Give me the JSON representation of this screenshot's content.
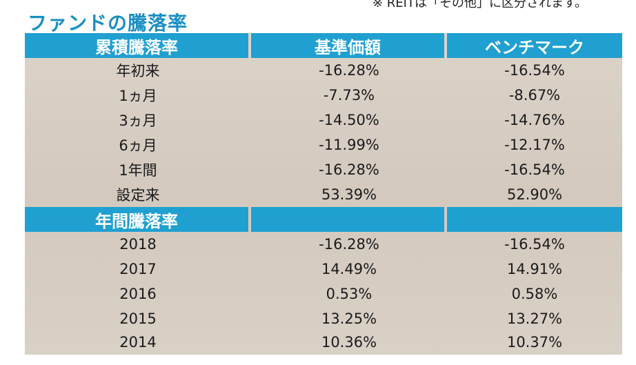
{
  "top_note": "※ REITは「その他」に区分されます。",
  "title": "ファンドの騰落率",
  "header": {
    "col1": "累積騰落率",
    "col2": "基準価額",
    "col3": "ベンチマーク"
  },
  "cumulative": [
    {
      "period": "年初来",
      "fund": "-16.28%",
      "benchmark": "-16.54%"
    },
    {
      "period": "1ヵ月",
      "fund": "-7.73%",
      "benchmark": "-8.67%"
    },
    {
      "period": "3ヵ月",
      "fund": "-14.50%",
      "benchmark": "-14.76%"
    },
    {
      "period": "6ヵ月",
      "fund": "-11.99%",
      "benchmark": "-12.17%"
    },
    {
      "period": "1年間",
      "fund": "-16.28%",
      "benchmark": "-16.54%"
    },
    {
      "period": "設定来",
      "fund": "53.39%",
      "benchmark": "52.90%"
    }
  ],
  "annual_header": "年間騰落率",
  "annual": [
    {
      "period": "2018",
      "fund": "-16.28%",
      "benchmark": "-16.54%"
    },
    {
      "period": "2017",
      "fund": "14.49%",
      "benchmark": "14.91%"
    },
    {
      "period": "2016",
      "fund": "0.53%",
      "benchmark": "0.58%"
    },
    {
      "period": "2015",
      "fund": "13.25%",
      "benchmark": "13.27%"
    },
    {
      "period": "2014",
      "fund": "10.36%",
      "benchmark": "10.37%"
    }
  ]
}
